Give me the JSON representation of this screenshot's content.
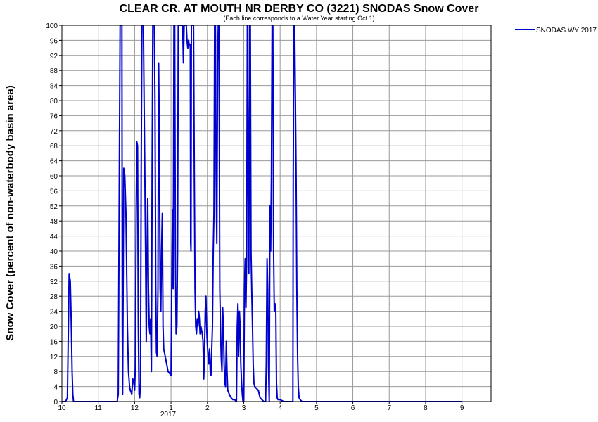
{
  "chart_data": {
    "type": "line",
    "title": "CLEAR CR. AT MOUTH NR DERBY CO (3221) SNODAS Snow Cover",
    "subtitle": "(Each line corresponds to a Water Year starting Oct 1)",
    "ylabel": "Snow Cover (percent of non-waterbody basin area)",
    "xlabel": "",
    "year_label": "2017",
    "ylim": [
      0,
      100
    ],
    "xlim_months": [
      0,
      11.8
    ],
    "y_ticks": [
      "0",
      "4",
      "8",
      "12",
      "16",
      "20",
      "24",
      "28",
      "32",
      "36",
      "40",
      "44",
      "48",
      "52",
      "56",
      "60",
      "64",
      "68",
      "72",
      "76",
      "80",
      "84",
      "88",
      "92",
      "96",
      "100"
    ],
    "x_ticks": [
      "10",
      "11",
      "12",
      "1",
      "2",
      "3",
      "4",
      "5",
      "6",
      "7",
      "8",
      "9"
    ],
    "grid": true,
    "legend_position": "top-right",
    "color": "#0000cc",
    "series": [
      {
        "name": "SNODAS WY 2017",
        "points": [
          [
            0,
            0
          ],
          [
            0.1,
            0
          ],
          [
            0.15,
            1
          ],
          [
            0.2,
            34
          ],
          [
            0.23,
            32
          ],
          [
            0.26,
            20
          ],
          [
            0.28,
            8
          ],
          [
            0.3,
            2
          ],
          [
            0.32,
            0
          ],
          [
            0.5,
            0
          ],
          [
            1,
            0
          ],
          [
            1.5,
            0
          ],
          [
            1.52,
            0
          ],
          [
            1.55,
            2
          ],
          [
            1.58,
            64
          ],
          [
            1.6,
            100
          ],
          [
            1.62,
            100
          ],
          [
            1.65,
            100
          ],
          [
            1.66,
            20
          ],
          [
            1.67,
            2
          ],
          [
            1.7,
            62
          ],
          [
            1.73,
            60
          ],
          [
            1.76,
            50
          ],
          [
            1.8,
            20
          ],
          [
            1.83,
            8
          ],
          [
            1.86,
            4
          ],
          [
            1.88,
            3
          ],
          [
            1.92,
            2
          ],
          [
            1.95,
            6
          ],
          [
            1.98,
            5
          ],
          [
            2.0,
            3
          ],
          [
            2.02,
            10
          ],
          [
            2.04,
            50
          ],
          [
            2.06,
            69
          ],
          [
            2.08,
            68
          ],
          [
            2.1,
            20
          ],
          [
            2.12,
            2
          ],
          [
            2.14,
            1
          ],
          [
            2.16,
            5
          ],
          [
            2.18,
            60
          ],
          [
            2.2,
            100
          ],
          [
            2.22,
            100
          ],
          [
            2.24,
            100
          ],
          [
            2.26,
            80
          ],
          [
            2.28,
            60
          ],
          [
            2.3,
            40
          ],
          [
            2.32,
            16
          ],
          [
            2.34,
            40
          ],
          [
            2.36,
            54
          ],
          [
            2.38,
            30
          ],
          [
            2.4,
            20
          ],
          [
            2.42,
            18
          ],
          [
            2.44,
            22
          ],
          [
            2.46,
            8
          ],
          [
            2.48,
            60
          ],
          [
            2.5,
            100
          ],
          [
            2.52,
            100
          ],
          [
            2.54,
            100
          ],
          [
            2.56,
            80
          ],
          [
            2.58,
            30
          ],
          [
            2.6,
            13
          ],
          [
            2.62,
            12
          ],
          [
            2.64,
            30
          ],
          [
            2.66,
            90
          ],
          [
            2.68,
            70
          ],
          [
            2.7,
            30
          ],
          [
            2.72,
            24
          ],
          [
            2.74,
            40
          ],
          [
            2.76,
            50
          ],
          [
            2.78,
            20
          ],
          [
            2.8,
            14
          ],
          [
            2.84,
            12
          ],
          [
            2.88,
            10
          ],
          [
            2.92,
            8
          ],
          [
            2.96,
            7.5
          ],
          [
            3.0,
            7
          ],
          [
            3.02,
            30
          ],
          [
            3.04,
            51
          ],
          [
            3.06,
            30
          ],
          [
            3.08,
            100
          ],
          [
            3.1,
            100
          ],
          [
            3.12,
            40
          ],
          [
            3.14,
            18
          ],
          [
            3.16,
            20
          ],
          [
            3.18,
            40
          ],
          [
            3.2,
            100
          ],
          [
            3.22,
            100
          ],
          [
            3.24,
            100
          ],
          [
            3.26,
            100
          ],
          [
            3.28,
            100
          ],
          [
            3.3,
            100
          ],
          [
            3.32,
            100
          ],
          [
            3.34,
            90
          ],
          [
            3.36,
            100
          ],
          [
            3.38,
            100
          ],
          [
            3.42,
            100
          ],
          [
            3.44,
            96
          ],
          [
            3.46,
            94
          ],
          [
            3.48,
            96
          ],
          [
            3.5,
            95
          ],
          [
            3.52,
            95
          ],
          [
            3.53,
            94
          ],
          [
            3.54,
            42
          ],
          [
            3.55,
            40
          ],
          [
            3.56,
            100
          ],
          [
            3.58,
            100
          ],
          [
            3.6,
            100
          ],
          [
            3.62,
            100
          ],
          [
            3.64,
            60
          ],
          [
            3.66,
            30
          ],
          [
            3.68,
            20
          ],
          [
            3.7,
            18
          ],
          [
            3.72,
            22
          ],
          [
            3.74,
            20
          ],
          [
            3.76,
            24
          ],
          [
            3.78,
            22
          ],
          [
            3.8,
            18
          ],
          [
            3.82,
            20
          ],
          [
            3.84,
            19
          ],
          [
            3.86,
            18
          ],
          [
            3.88,
            16
          ],
          [
            3.9,
            6
          ],
          [
            3.92,
            12
          ],
          [
            3.94,
            24
          ],
          [
            3.96,
            28
          ],
          [
            3.98,
            20
          ],
          [
            4.0,
            15
          ],
          [
            4.02,
            12
          ],
          [
            4.04,
            10
          ],
          [
            4.06,
            14
          ],
          [
            4.08,
            8
          ],
          [
            4.1,
            7
          ],
          [
            4.12,
            14
          ],
          [
            4.14,
            20
          ],
          [
            4.16,
            40
          ],
          [
            4.18,
            50
          ],
          [
            4.2,
            100
          ],
          [
            4.22,
            100
          ],
          [
            4.24,
            60
          ],
          [
            4.26,
            42
          ],
          [
            4.28,
            90
          ],
          [
            4.3,
            100
          ],
          [
            4.32,
            100
          ],
          [
            4.34,
            30
          ],
          [
            4.36,
            20
          ],
          [
            4.38,
            12
          ],
          [
            4.4,
            8
          ],
          [
            4.42,
            25
          ],
          [
            4.44,
            20
          ],
          [
            4.46,
            10
          ],
          [
            4.48,
            5
          ],
          [
            4.5,
            4
          ],
          [
            4.52,
            16
          ],
          [
            4.54,
            8
          ],
          [
            4.56,
            3
          ],
          [
            4.6,
            2
          ],
          [
            4.65,
            1
          ],
          [
            4.7,
            0.5
          ],
          [
            4.75,
            0.5
          ],
          [
            4.8,
            0
          ],
          [
            4.82,
            20
          ],
          [
            4.84,
            26
          ],
          [
            4.86,
            12
          ],
          [
            4.88,
            24
          ],
          [
            4.9,
            20
          ],
          [
            4.92,
            10
          ],
          [
            4.94,
            5
          ],
          [
            4.96,
            2
          ],
          [
            4.98,
            0
          ],
          [
            5.0,
            0
          ],
          [
            5.02,
            30
          ],
          [
            5.04,
            38
          ],
          [
            5.06,
            25
          ],
          [
            5.08,
            38
          ],
          [
            5.1,
            100
          ],
          [
            5.12,
            60
          ],
          [
            5.14,
            34
          ],
          [
            5.16,
            100
          ],
          [
            5.18,
            100
          ],
          [
            5.2,
            40
          ],
          [
            5.22,
            30
          ],
          [
            5.24,
            20
          ],
          [
            5.26,
            10
          ],
          [
            5.28,
            5
          ],
          [
            5.3,
            4
          ],
          [
            5.4,
            3
          ],
          [
            5.45,
            1
          ],
          [
            5.5,
            0.5
          ],
          [
            5.55,
            0
          ],
          [
            5.6,
            0
          ],
          [
            5.62,
            10
          ],
          [
            5.64,
            38
          ],
          [
            5.66,
            30
          ],
          [
            5.68,
            10
          ],
          [
            5.7,
            0
          ],
          [
            5.72,
            52
          ],
          [
            5.74,
            40
          ],
          [
            5.76,
            60
          ],
          [
            5.78,
            100
          ],
          [
            5.8,
            100
          ],
          [
            5.82,
            40
          ],
          [
            5.84,
            24
          ],
          [
            5.86,
            26
          ],
          [
            5.88,
            25
          ],
          [
            5.9,
            5
          ],
          [
            5.92,
            1
          ],
          [
            5.94,
            0.5
          ],
          [
            6.0,
            0.5
          ],
          [
            6.1,
            0
          ],
          [
            6.2,
            0
          ],
          [
            6.3,
            0
          ],
          [
            6.35,
            0
          ],
          [
            6.36,
            60
          ],
          [
            6.38,
            100
          ],
          [
            6.4,
            100
          ],
          [
            6.42,
            80
          ],
          [
            6.44,
            60
          ],
          [
            6.46,
            30
          ],
          [
            6.48,
            12
          ],
          [
            6.5,
            4
          ],
          [
            6.52,
            1
          ],
          [
            6.55,
            0.5
          ],
          [
            6.6,
            0
          ],
          [
            6.7,
            0
          ],
          [
            7,
            0
          ],
          [
            8,
            0
          ],
          [
            9,
            0
          ],
          [
            10,
            0
          ],
          [
            11,
            0
          ]
        ]
      }
    ]
  }
}
